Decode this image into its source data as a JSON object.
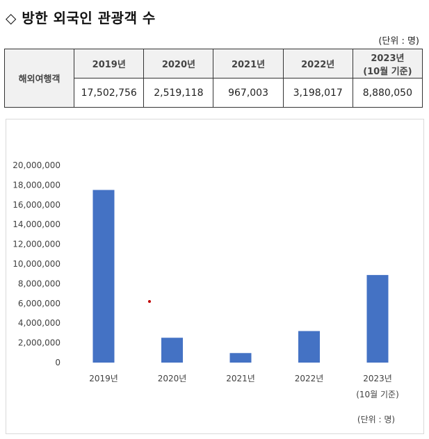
{
  "title": "◇ 방한 외국인 관광객 수",
  "unit_label": "(단위 : 명)",
  "table": {
    "row_header": "해외여행객",
    "columns": [
      {
        "line1": "2019년",
        "line2": ""
      },
      {
        "line1": "2020년",
        "line2": ""
      },
      {
        "line1": "2021년",
        "line2": ""
      },
      {
        "line1": "2022년",
        "line2": ""
      },
      {
        "line1": "2023년",
        "line2": "(10월 기준)"
      }
    ],
    "values": [
      "17,502,756",
      "2,519,118",
      "967,003",
      "3,198,017",
      "8,880,050"
    ]
  },
  "chart_data": {
    "type": "bar",
    "categories": [
      "2019년",
      "2020년",
      "2021년",
      "2022년",
      "2023년"
    ],
    "category_sublabels": [
      "",
      "",
      "",
      "",
      "(10월 기준)"
    ],
    "values": [
      17502756,
      2519118,
      967003,
      3198017,
      8880050
    ],
    "ylim": [
      0,
      20000000
    ],
    "yticks": [
      "0",
      "2,000,000",
      "4,000,000",
      "6,000,000",
      "8,000,000",
      "10,000,000",
      "12,000,000",
      "14,000,000",
      "16,000,000",
      "18,000,000",
      "20,000,000"
    ],
    "grid": false,
    "bar_color": "#4472c4",
    "unit_note": "(단위 : 명)",
    "marker_color": "#c00000"
  }
}
